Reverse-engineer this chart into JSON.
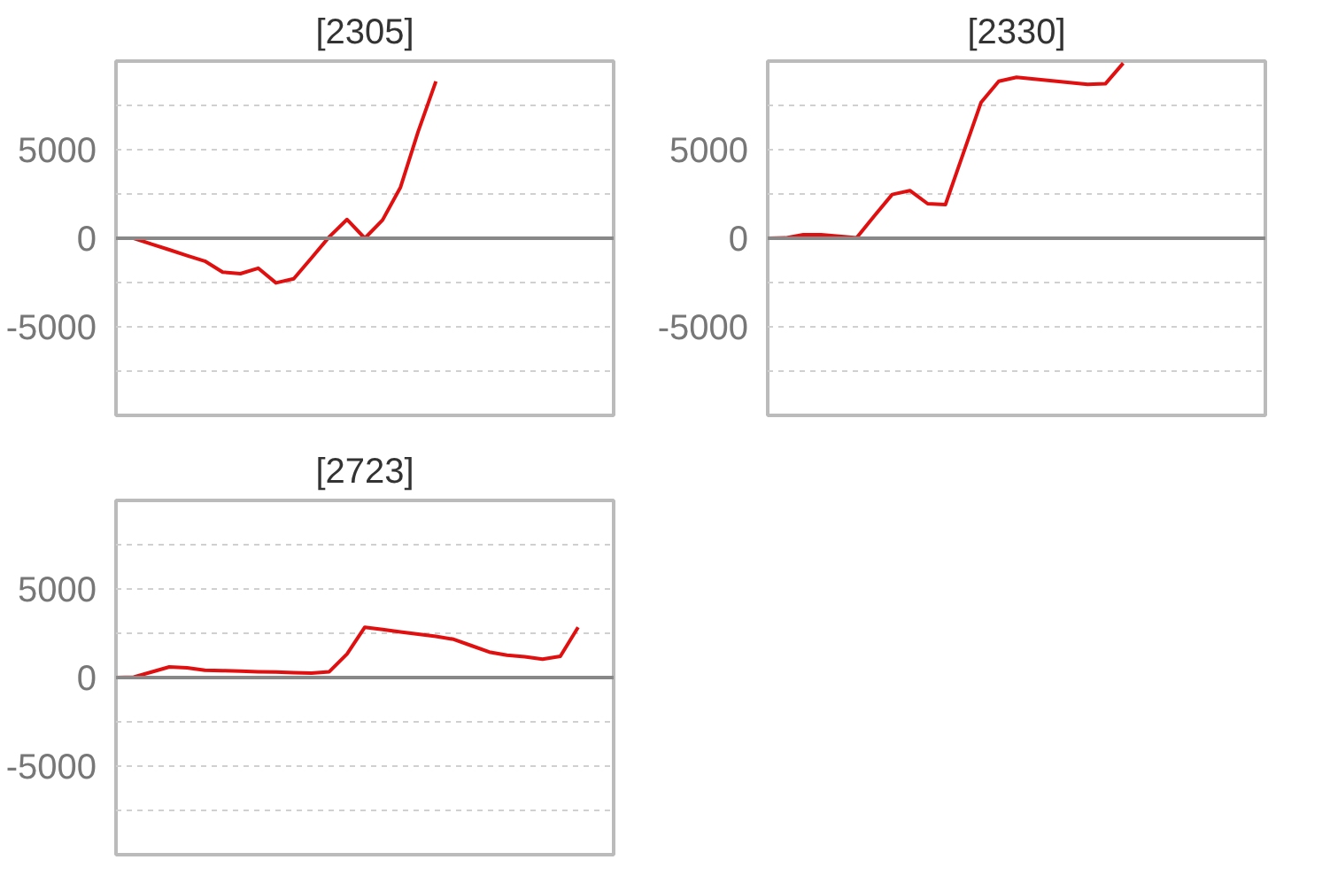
{
  "chart_data": [
    {
      "type": "line",
      "title": "[2305]",
      "categories": [
        null,
        null,
        null,
        null,
        null,
        null,
        null,
        null,
        null,
        null,
        null,
        null,
        null,
        null,
        null,
        null,
        null,
        null,
        null,
        null,
        null,
        null,
        null,
        null,
        null,
        null,
        null,
        null,
        null
      ],
      "series": [
        {
          "color": "#e01010",
          "values": [
            0,
            0,
            -330,
            -650,
            -980,
            -1290,
            -1910,
            -2000,
            -1690,
            -2520,
            -2290,
            -1110,
            80,
            1060,
            0,
            1030,
            2860,
            6020,
            8860,
            null,
            null,
            null,
            null,
            null,
            null,
            null,
            null,
            null,
            null
          ]
        }
      ],
      "ylim": [
        -10000,
        10000
      ],
      "yticks": [
        {
          "value": 7500,
          "label": null
        },
        5000,
        {
          "value": 2500,
          "label": null
        },
        0,
        {
          "value": -2500,
          "label": null
        },
        -5000,
        {
          "value": -7500,
          "label": null
        }
      ],
      "tick_labels": "y",
      "grid": "y",
      "ref_lines": [
        {
          "axis": "y",
          "value": 0,
          "color": "#888888"
        }
      ]
    },
    {
      "type": "line",
      "title": "[2330]",
      "categories": [
        null,
        null,
        null,
        null,
        null,
        null,
        null,
        null,
        null,
        null,
        null,
        null,
        null,
        null,
        null,
        null,
        null,
        null,
        null,
        null,
        null,
        null,
        null,
        null,
        null,
        null,
        null,
        null,
        null
      ],
      "series": [
        {
          "color": "#e01010",
          "values": [
            0,
            20,
            200,
            200,
            110,
            30,
            1260,
            2470,
            2690,
            1950,
            1900,
            4780,
            7660,
            8860,
            9090,
            8990,
            8890,
            8790,
            8690,
            8720,
            9880,
            null,
            null,
            null,
            null,
            null,
            null,
            null,
            null
          ]
        }
      ],
      "ylim": [
        -10000,
        10000
      ],
      "yticks": [
        {
          "value": 7500,
          "label": null
        },
        5000,
        {
          "value": 2500,
          "label": null
        },
        0,
        {
          "value": -2500,
          "label": null
        },
        -5000,
        {
          "value": -7500,
          "label": null
        }
      ],
      "tick_labels": "y",
      "grid": "y",
      "ref_lines": [
        {
          "axis": "y",
          "value": 0,
          "color": "#888888"
        }
      ]
    },
    {
      "type": "line",
      "title": "[2723]",
      "categories": [
        null,
        null,
        null,
        null,
        null,
        null,
        null,
        null,
        null,
        null,
        null,
        null,
        null,
        null,
        null,
        null,
        null,
        null,
        null,
        null,
        null,
        null,
        null,
        null,
        null,
        null,
        null,
        null,
        null
      ],
      "series": [
        {
          "color": "#e01010",
          "values": [
            0,
            30,
            310,
            600,
            550,
            410,
            390,
            360,
            330,
            310,
            280,
            250,
            330,
            1330,
            2840,
            2710,
            2580,
            2450,
            2320,
            2160,
            1800,
            1440,
            1260,
            1170,
            1040,
            1200,
            2840,
            null,
            null
          ]
        }
      ],
      "ylim": [
        -10000,
        10000
      ],
      "yticks": [
        {
          "value": 7500,
          "label": null
        },
        5000,
        {
          "value": 2500,
          "label": null
        },
        0,
        {
          "value": -2500,
          "label": null
        },
        -5000,
        {
          "value": -7500,
          "label": null
        }
      ],
      "tick_labels": "y",
      "grid": "y",
      "ref_lines": [
        {
          "axis": "y",
          "value": 0,
          "color": "#888888"
        }
      ]
    }
  ]
}
